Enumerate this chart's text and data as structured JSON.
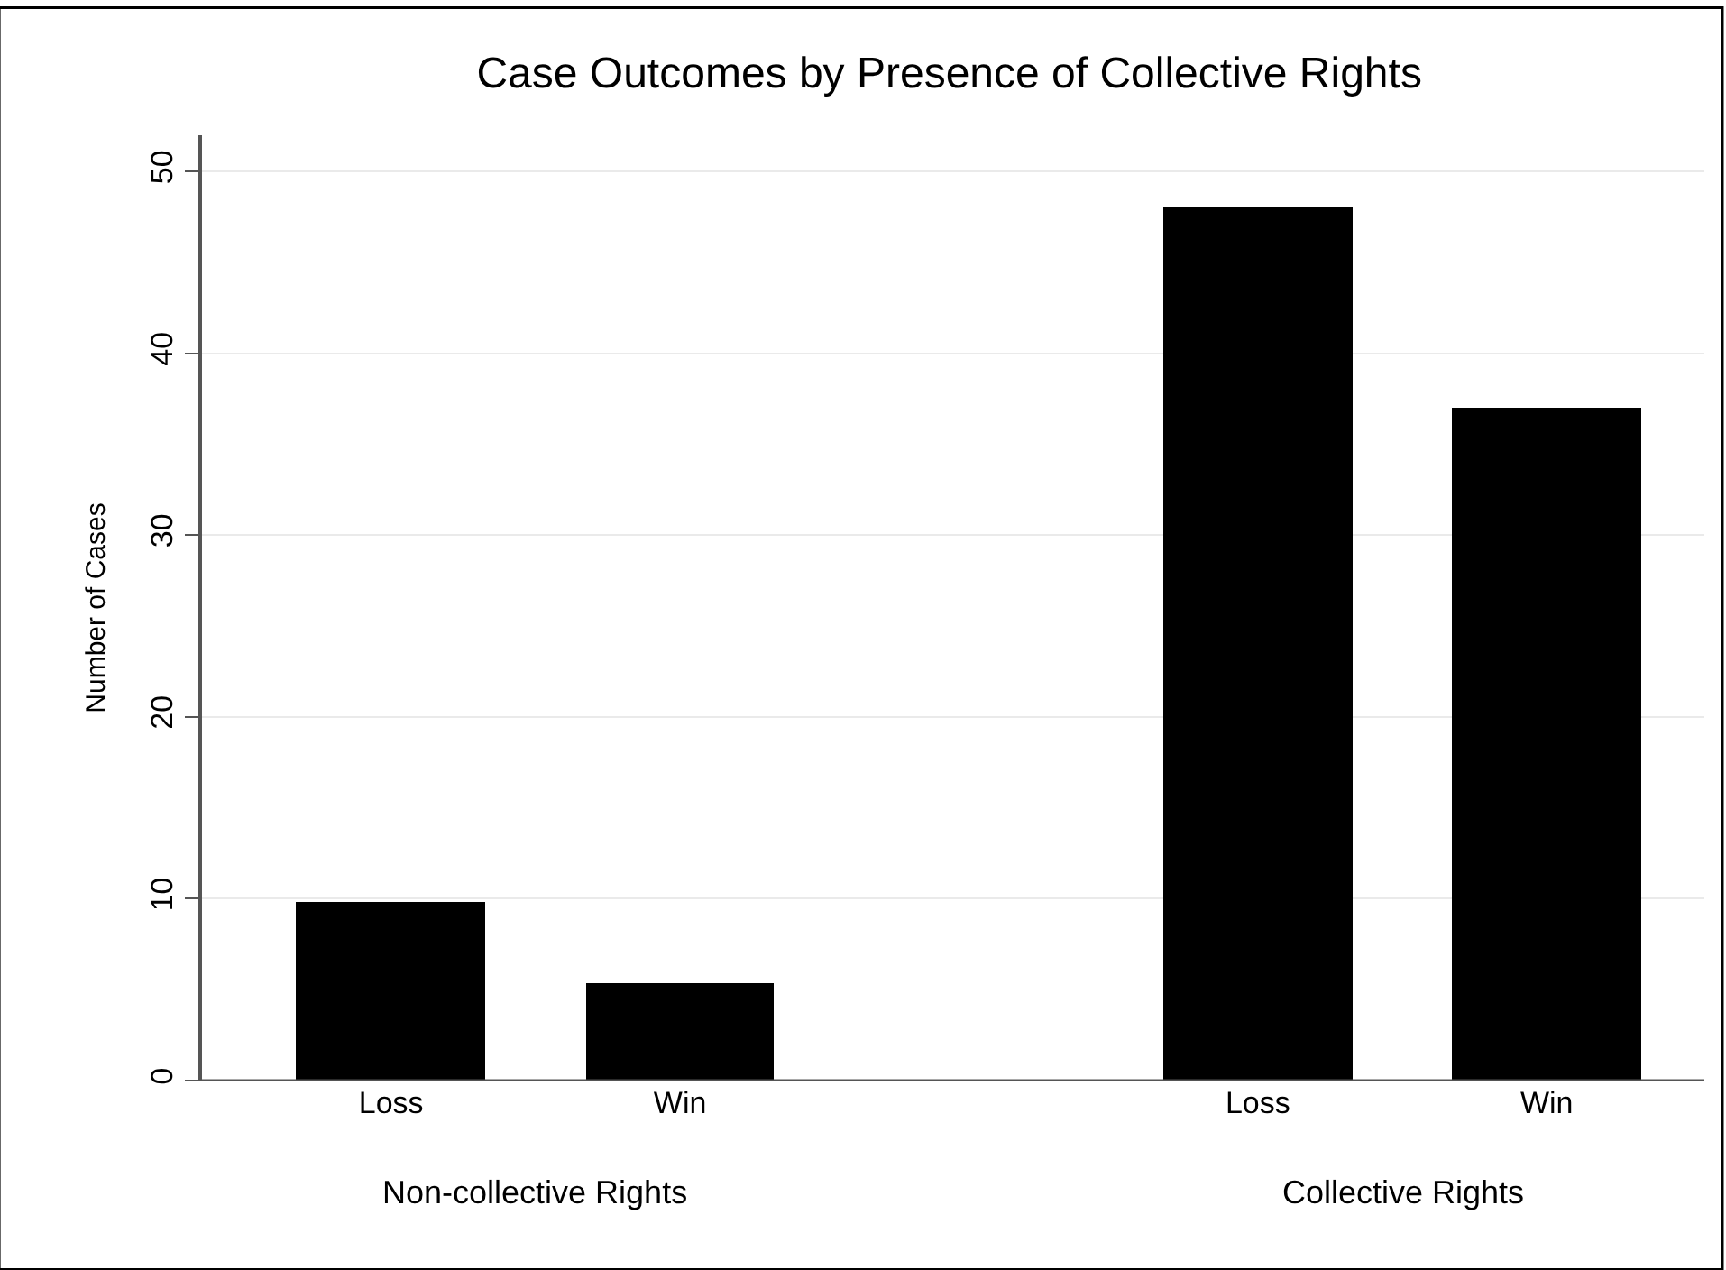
{
  "chart_data": {
    "type": "bar",
    "title": "Case Outcomes by Presence of Collective Rights",
    "ylabel": "Number of Cases",
    "categories": [
      "Loss",
      "Win",
      "Loss",
      "Win"
    ],
    "values": [
      9.8,
      5.4,
      48,
      37
    ],
    "color": "#000000",
    "annotations": [
      "Non-collective Rights",
      "Collective Rights"
    ],
    "ylim": [
      0,
      52
    ],
    "yticks": [
      0,
      10,
      20,
      30,
      40,
      50
    ],
    "grid": "y"
  }
}
